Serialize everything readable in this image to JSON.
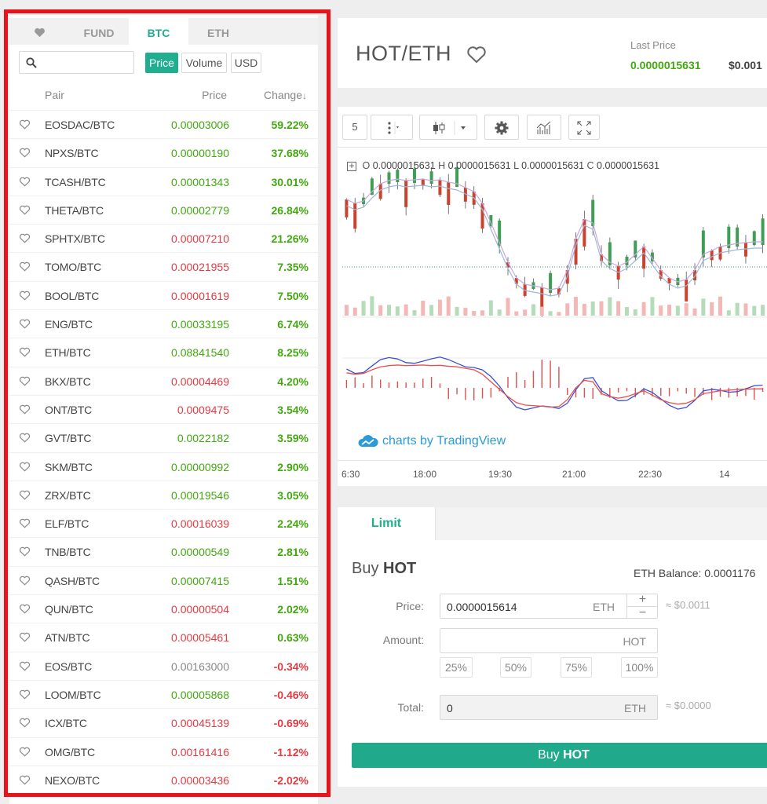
{
  "market": {
    "tabs": [
      {
        "label": "FUND"
      },
      {
        "label": "BTC"
      },
      {
        "label": "ETH"
      }
    ],
    "search": {
      "placeholder": ""
    },
    "toggles": [
      "Price",
      "Volume",
      "USD"
    ],
    "columns": {
      "pair": "Pair",
      "price": "Price",
      "change": "Change",
      "change_arrow": "↓"
    },
    "rows": [
      {
        "pair": "EOSDAC/BTC",
        "price": "0.00003006",
        "change": "59.22%",
        "price_color": "green",
        "change_color": "green"
      },
      {
        "pair": "NPXS/BTC",
        "price": "0.00000190",
        "change": "37.68%",
        "price_color": "green",
        "change_color": "green"
      },
      {
        "pair": "TCASH/BTC",
        "price": "0.00001343",
        "change": "30.01%",
        "price_color": "green",
        "change_color": "green"
      },
      {
        "pair": "THETA/BTC",
        "price": "0.00002779",
        "change": "26.84%",
        "price_color": "green",
        "change_color": "green"
      },
      {
        "pair": "SPHTX/BTC",
        "price": "0.00007210",
        "change": "21.26%",
        "price_color": "red",
        "change_color": "green"
      },
      {
        "pair": "TOMO/BTC",
        "price": "0.00021955",
        "change": "7.35%",
        "price_color": "red",
        "change_color": "green"
      },
      {
        "pair": "BOOL/BTC",
        "price": "0.00001619",
        "change": "7.50%",
        "price_color": "red",
        "change_color": "green"
      },
      {
        "pair": "ENG/BTC",
        "price": "0.00033195",
        "change": "6.74%",
        "price_color": "green",
        "change_color": "green"
      },
      {
        "pair": "ETH/BTC",
        "price": "0.08841540",
        "change": "8.25%",
        "price_color": "green",
        "change_color": "green"
      },
      {
        "pair": "BKX/BTC",
        "price": "0.00004469",
        "change": "4.20%",
        "price_color": "red",
        "change_color": "green"
      },
      {
        "pair": "ONT/BTC",
        "price": "0.0009475",
        "change": "3.54%",
        "price_color": "red",
        "change_color": "green"
      },
      {
        "pair": "GVT/BTC",
        "price": "0.0022182",
        "change": "3.59%",
        "price_color": "green",
        "change_color": "green"
      },
      {
        "pair": "SKM/BTC",
        "price": "0.00000992",
        "change": "2.90%",
        "price_color": "green",
        "change_color": "green"
      },
      {
        "pair": "ZRX/BTC",
        "price": "0.00019546",
        "change": "3.05%",
        "price_color": "green",
        "change_color": "green"
      },
      {
        "pair": "ELF/BTC",
        "price": "0.00016039",
        "change": "2.24%",
        "price_color": "red",
        "change_color": "green"
      },
      {
        "pair": "TNB/BTC",
        "price": "0.00000549",
        "change": "2.81%",
        "price_color": "green",
        "change_color": "green"
      },
      {
        "pair": "QASH/BTC",
        "price": "0.00007415",
        "change": "1.51%",
        "price_color": "green",
        "change_color": "green"
      },
      {
        "pair": "QUN/BTC",
        "price": "0.00000504",
        "change": "2.02%",
        "price_color": "red",
        "change_color": "green"
      },
      {
        "pair": "ATN/BTC",
        "price": "0.00005461",
        "change": "0.63%",
        "price_color": "red",
        "change_color": "green"
      },
      {
        "pair": "EOS/BTC",
        "price": "0.00163000",
        "change": "-0.34%",
        "price_color": "gray",
        "change_color": "red"
      },
      {
        "pair": "LOOM/BTC",
        "price": "0.00005868",
        "change": "-0.46%",
        "price_color": "green",
        "change_color": "red"
      },
      {
        "pair": "ICX/BTC",
        "price": "0.00045139",
        "change": "-0.69%",
        "price_color": "red",
        "change_color": "red"
      },
      {
        "pair": "OMG/BTC",
        "price": "0.00161416",
        "change": "-1.12%",
        "price_color": "red",
        "change_color": "red"
      },
      {
        "pair": "NEXO/BTC",
        "price": "0.00003436",
        "change": "-2.02%",
        "price_color": "red",
        "change_color": "red"
      }
    ]
  },
  "header": {
    "pair": "HOT/ETH",
    "last_price_label": "Last Price",
    "last_price": "0.0000015631",
    "last_price_usd": "$0.001"
  },
  "chart": {
    "interval": "5",
    "ohlc": {
      "o_label": "O",
      "o": "0.0000015631",
      "h_label": "H",
      "h": "0.0000015631",
      "l_label": "L",
      "l": "0.0000015631",
      "c_label": "C",
      "c": "0.0000015631"
    },
    "watermark": "charts by TradingView",
    "time_labels": [
      "6:30",
      "18:00",
      "19:30",
      "21:00",
      "22:30",
      "14"
    ]
  },
  "order": {
    "tab": "Limit",
    "buy_prefix": "Buy",
    "buy_asset": "HOT",
    "balance": "ETH Balance: 0.0001176",
    "price_label": "Price:",
    "price_value": "0.0000015614",
    "price_unit": "ETH",
    "price_approx": "≈ $0.0011",
    "amount_label": "Amount:",
    "amount_unit": "HOT",
    "percents": [
      "25%",
      "50%",
      "75%",
      "100%"
    ],
    "total_label": "Total:",
    "total_value": "0",
    "total_unit": "ETH",
    "total_approx": "≈ $0.0000",
    "button_prefix": "Buy",
    "button_asset": "HOT"
  },
  "colors": {
    "accent": "#1fae8e",
    "up": "#42a80f",
    "down": "#e33b42",
    "highlight": "#e8141c"
  }
}
